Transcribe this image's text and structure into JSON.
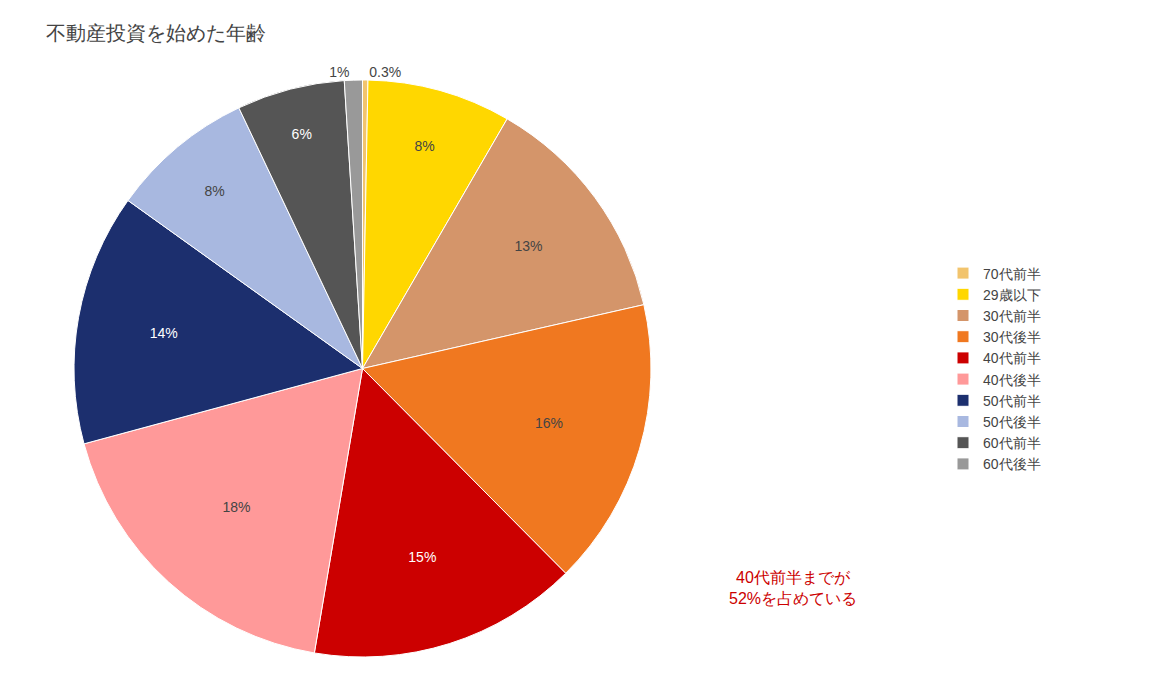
{
  "chart_data": {
    "type": "pie",
    "title": "不動産投資を始めた年齢",
    "categories": [
      "70代前半",
      "29歳以下",
      "30代前半",
      "30代後半",
      "40代前半",
      "40代後半",
      "50代前半",
      "50代後半",
      "60代前半",
      "60代後半"
    ],
    "values": [
      0.3,
      8,
      13,
      16,
      15,
      18,
      14,
      8,
      6,
      1
    ],
    "value_labels": [
      "0.3%",
      "8%",
      "13%",
      "16%",
      "15%",
      "18%",
      "14%",
      "8%",
      "6%",
      "1%"
    ],
    "colors": [
      "#F2C46D",
      "#FFD700",
      "#D4956A",
      "#F07820",
      "#CC0000",
      "#FF9999",
      "#1C2F6E",
      "#A8B8E0",
      "#555555",
      "#999999"
    ],
    "data_labels": true,
    "legend": "right",
    "annotations": [
      {
        "text": "40代前半までが\n52%を占めている",
        "color": "#CC0000"
      }
    ]
  }
}
